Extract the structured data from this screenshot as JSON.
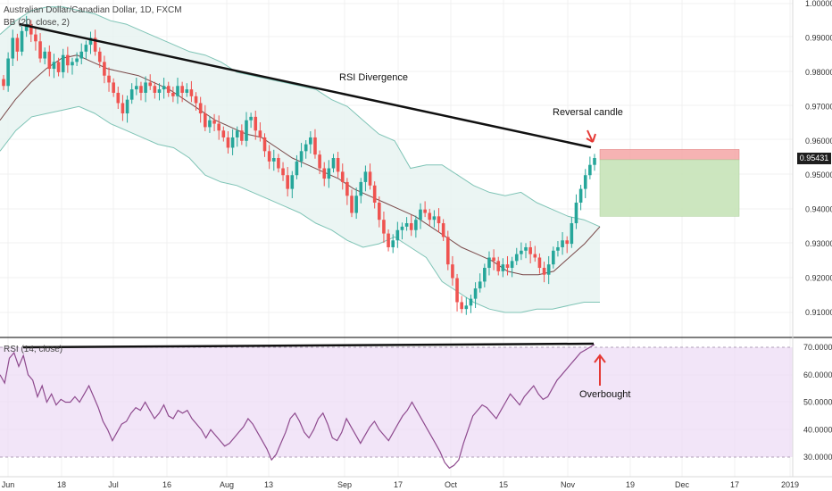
{
  "header": {
    "title": "Australian Dollar/Canadian Dollar, 1D, FXCM",
    "bb_label": "BB (20, close, 2)",
    "rsi_label": "RSI (14, close)"
  },
  "current_price": "0.95431",
  "annotations": {
    "rsi_divergence": "RSI Divergence",
    "reversal_candle": "Reversal candle",
    "overbought": "Overbought"
  },
  "colors": {
    "up": "#26a69a",
    "down": "#ef5350",
    "bb_fill": "#e6f2f0",
    "bb_line": "#7fc4b6",
    "basis": "#7a4a4a",
    "rsi_line": "#8e4a8e",
    "rsi_zone": "#eedcf6",
    "short_risk": "#f4a6a6",
    "short_reward": "#c6e3b8"
  },
  "chart_data": [
    {
      "type": "candlestick",
      "title": "Australian Dollar/Canadian Dollar, 1D, FXCM",
      "x_ticks": [
        "Jun",
        "18",
        "Jul",
        "16",
        "Aug",
        "13",
        "Sep",
        "17",
        "Oct",
        "15",
        "Nov",
        "19",
        "Dec",
        "17",
        "2019"
      ],
      "y_ticks": [
        "1.00000",
        "0.99000",
        "0.98000",
        "0.97000",
        "0.96000",
        "0.95000",
        "0.94000",
        "0.93000",
        "0.92000",
        "0.91000"
      ],
      "ylim": [
        0.9065,
        1.0
      ],
      "candles_close": [
        0.976,
        0.984,
        0.99,
        0.986,
        0.992,
        0.994,
        0.991,
        0.989,
        0.984,
        0.986,
        0.981,
        0.983,
        0.98,
        0.985,
        0.982,
        0.983,
        0.984,
        0.986,
        0.988,
        0.99,
        0.986,
        0.983,
        0.979,
        0.977,
        0.974,
        0.971,
        0.968,
        0.972,
        0.975,
        0.976,
        0.974,
        0.977,
        0.976,
        0.974,
        0.975,
        0.976,
        0.974,
        0.973,
        0.976,
        0.974,
        0.975,
        0.973,
        0.971,
        0.968,
        0.964,
        0.966,
        0.965,
        0.963,
        0.961,
        0.958,
        0.961,
        0.963,
        0.96,
        0.966,
        0.967,
        0.963,
        0.961,
        0.957,
        0.954,
        0.955,
        0.952,
        0.95,
        0.946,
        0.95,
        0.954,
        0.957,
        0.959,
        0.961,
        0.956,
        0.952,
        0.949,
        0.952,
        0.955,
        0.951,
        0.948,
        0.944,
        0.939,
        0.944,
        0.948,
        0.951,
        0.947,
        0.942,
        0.937,
        0.933,
        0.929,
        0.931,
        0.934,
        0.935,
        0.936,
        0.934,
        0.937,
        0.94,
        0.939,
        0.937,
        0.938,
        0.936,
        0.932,
        0.924,
        0.92,
        0.913,
        0.911,
        0.912,
        0.914,
        0.917,
        0.919,
        0.923,
        0.926,
        0.925,
        0.922,
        0.924,
        0.923,
        0.925,
        0.927,
        0.928,
        0.929,
        0.927,
        0.926,
        0.923,
        0.921,
        0.924,
        0.928,
        0.929,
        0.931,
        0.93,
        0.936,
        0.942,
        0.946,
        0.95,
        0.953,
        0.955
      ],
      "bb_upper": [
        0.991,
        0.995,
        0.998,
        0.999,
        0.999,
        0.998,
        0.997,
        0.995,
        0.994,
        0.992,
        0.99,
        0.988,
        0.986,
        0.985,
        0.983,
        0.98,
        0.979,
        0.978,
        0.977,
        0.976,
        0.975,
        0.972,
        0.97,
        0.966,
        0.962,
        0.96,
        0.952,
        0.953,
        0.953,
        0.95,
        0.947,
        0.945,
        0.944,
        0.945,
        0.942,
        0.94,
        0.938,
        0.937,
        0.935
      ],
      "bb_lower": [
        0.957,
        0.963,
        0.967,
        0.968,
        0.969,
        0.97,
        0.968,
        0.965,
        0.963,
        0.961,
        0.959,
        0.958,
        0.955,
        0.95,
        0.948,
        0.947,
        0.945,
        0.943,
        0.941,
        0.939,
        0.936,
        0.934,
        0.931,
        0.929,
        0.93,
        0.932,
        0.929,
        0.926,
        0.919,
        0.916,
        0.913,
        0.911,
        0.91,
        0.91,
        0.911,
        0.911,
        0.912,
        0.913,
        0.913
      ],
      "basis": [
        0.966,
        0.972,
        0.977,
        0.981,
        0.984,
        0.985,
        0.983,
        0.981,
        0.98,
        0.979,
        0.977,
        0.975,
        0.972,
        0.969,
        0.966,
        0.964,
        0.962,
        0.961,
        0.958,
        0.955,
        0.953,
        0.951,
        0.949,
        0.946,
        0.944,
        0.942,
        0.94,
        0.938,
        0.935,
        0.932,
        0.929,
        0.927,
        0.925,
        0.922,
        0.921,
        0.921,
        0.922,
        0.926,
        0.93,
        0.935
      ],
      "short_position": {
        "stop": 0.9575,
        "entry": 0.9545,
        "target": 0.938
      }
    },
    {
      "type": "line",
      "title": "RSI (14, close)",
      "y_ticks": [
        "70.0000",
        "60.0000",
        "50.0000",
        "40.0000",
        "30.0000"
      ],
      "ylim": [
        27,
        72
      ],
      "band": [
        30,
        70
      ],
      "rsi": [
        60,
        57,
        66,
        68,
        63,
        67,
        60,
        58,
        52,
        56,
        50,
        53,
        49,
        51,
        50,
        50,
        52,
        50,
        53,
        56,
        52,
        48,
        43,
        40,
        36,
        39,
        42,
        43,
        46,
        48,
        47,
        50,
        47,
        44,
        46,
        49,
        45,
        44,
        47,
        46,
        47,
        44,
        42,
        40,
        37,
        40,
        38,
        36,
        34,
        35,
        37,
        39,
        41,
        44,
        42,
        39,
        36,
        33,
        29,
        31,
        35,
        39,
        44,
        46,
        43,
        39,
        37,
        40,
        44,
        46,
        42,
        37,
        36,
        39,
        44,
        41,
        38,
        35,
        38,
        41,
        43,
        40,
        38,
        36,
        39,
        42,
        45,
        47,
        50,
        47,
        44,
        41,
        38,
        35,
        32,
        28,
        26,
        27,
        29,
        35,
        40,
        45,
        47,
        49,
        48,
        46,
        44,
        47,
        50,
        53,
        51,
        49,
        52,
        54,
        56,
        53,
        51,
        52,
        55,
        58,
        60,
        62,
        64,
        66,
        68,
        69,
        70,
        71
      ],
      "trendline_rsi": [
        70.5,
        70.7
      ]
    }
  ]
}
